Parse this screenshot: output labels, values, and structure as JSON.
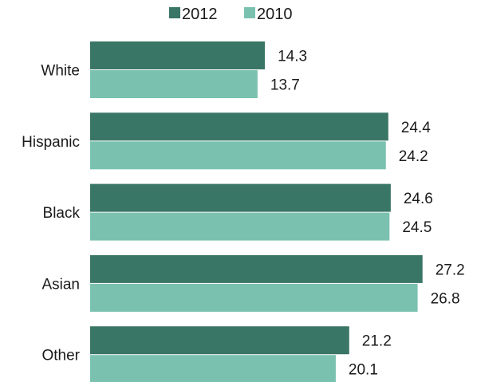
{
  "chart_data": {
    "type": "bar",
    "orientation": "horizontal",
    "title": "",
    "xlabel": "",
    "ylabel": "",
    "categories": [
      "White",
      "Hispanic",
      "Black",
      "Asian",
      "Other"
    ],
    "series": [
      {
        "name": "2012",
        "color": "#3a7666",
        "values": [
          14.3,
          24.4,
          24.6,
          27.2,
          21.2
        ]
      },
      {
        "name": "2010",
        "color": "#7ac1b0",
        "values": [
          13.7,
          24.2,
          24.5,
          26.8,
          20.1
        ]
      }
    ],
    "xlim": [
      0,
      28
    ],
    "grid": false,
    "legend_position": "top-center"
  }
}
